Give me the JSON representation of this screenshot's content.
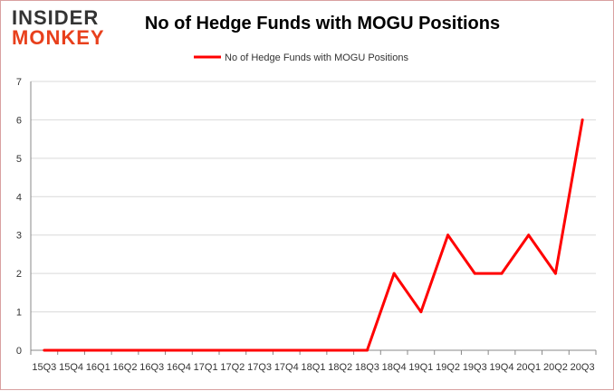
{
  "logo": {
    "line1": "INSIDER",
    "line2": "MONKEY"
  },
  "chart_data": {
    "type": "line",
    "title": "No of Hedge Funds with MOGU Positions",
    "xlabel": "",
    "ylabel": "",
    "categories": [
      "15Q3",
      "15Q4",
      "16Q1",
      "16Q2",
      "16Q3",
      "16Q4",
      "17Q1",
      "17Q2",
      "17Q3",
      "17Q4",
      "18Q1",
      "18Q2",
      "18Q3",
      "18Q4",
      "19Q1",
      "19Q2",
      "19Q3",
      "19Q4",
      "20Q1",
      "20Q2",
      "20Q3"
    ],
    "series": [
      {
        "name": "No of Hedge Funds with MOGU Positions",
        "color": "#ff0000",
        "values": [
          0,
          0,
          0,
          0,
          0,
          0,
          0,
          0,
          0,
          0,
          0,
          0,
          0,
          2,
          1,
          3,
          2,
          2,
          3,
          2,
          6
        ]
      }
    ],
    "ylim": [
      0,
      7
    ],
    "yticks": [
      0,
      1,
      2,
      3,
      4,
      5,
      6,
      7
    ],
    "grid": true,
    "legend": "top"
  }
}
